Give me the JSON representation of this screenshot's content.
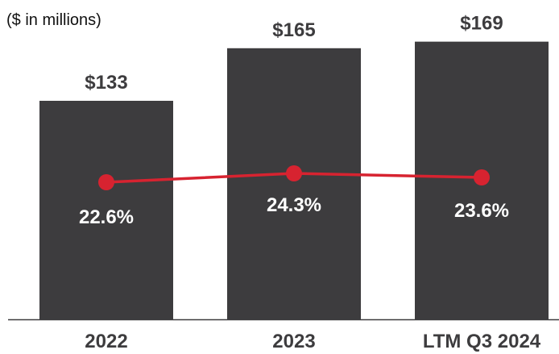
{
  "chart_data": {
    "type": "bar",
    "units_note": "($ in millions)",
    "categories": [
      "2022",
      "2023",
      "LTM Q3 2024"
    ],
    "series": [
      {
        "type": "bar",
        "values": [
          133,
          165,
          169
        ],
        "value_labels": [
          "$133",
          "$165",
          "$169"
        ],
        "color": "#3d3c3e"
      },
      {
        "type": "line",
        "values": [
          22.6,
          24.3,
          23.6
        ],
        "value_labels": [
          "22.6%",
          "24.3%",
          "23.6%"
        ],
        "color": "#d72330"
      }
    ],
    "ylim": [
      0,
      180
    ],
    "grid": false,
    "legend": "none",
    "colors": {
      "bar": "#3d3c3e",
      "line": "#d72330",
      "bar_label": "#3d3c3e",
      "inside_label": "#ffffff",
      "axis": "#3d3c3e",
      "category_label": "#3d3c3e"
    }
  }
}
